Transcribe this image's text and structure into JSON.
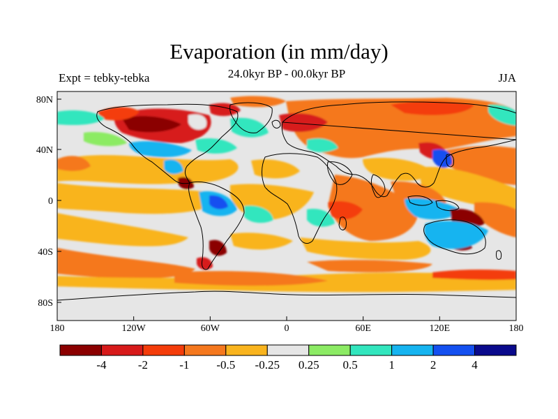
{
  "title": "Evaporation (in mm/day)",
  "subtitle": "24.0kyr BP - 00.0kyr BP",
  "left_note": "Expt = tebky-tebka",
  "right_note": "JJA",
  "map": {
    "lat_ticks": [
      "80N",
      "40N",
      "0",
      "40S",
      "80S"
    ],
    "lon_ticks": [
      "180",
      "120W",
      "60W",
      "0",
      "60E",
      "120E",
      "180"
    ],
    "colors": {
      "land_outline": "#000000",
      "neutral": "#e6e6e6"
    }
  },
  "colorbar": {
    "colors": [
      "#8b0000",
      "#d71a1a",
      "#f43c0a",
      "#f5781e",
      "#f9b41e",
      "#e6e6e6",
      "#8ceb64",
      "#32e6be",
      "#16b4f0",
      "#1450f0",
      "#0a0a8c"
    ],
    "labels": [
      "-4",
      "-2",
      "-1",
      "-0.5",
      "-0.25",
      "0.25",
      "0.5",
      "1",
      "2",
      "4"
    ]
  }
}
